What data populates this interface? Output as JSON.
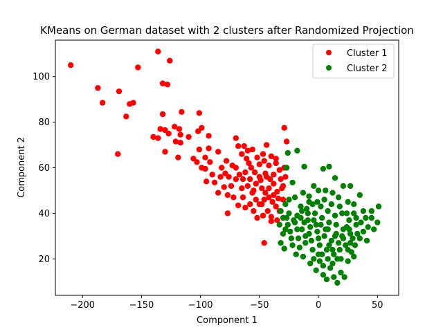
{
  "chart_data": {
    "type": "scatter",
    "title": "KMeans on German dataset with 2 clusters after Randomized Projection",
    "xlabel": "Component 1",
    "ylabel": "Component 2",
    "xlim": [
      -223,
      68
    ],
    "ylim": [
      4,
      116
    ],
    "xticks": [
      -200,
      -150,
      -100,
      -50,
      0,
      50
    ],
    "yticks": [
      20,
      40,
      60,
      80,
      100
    ],
    "grid": false,
    "legend_position": "top-right",
    "series": [
      {
        "name": "Cluster 1",
        "color": "#ff0000",
        "points": [
          [
            -210,
            105
          ],
          [
            -187,
            95
          ],
          [
            -183,
            88.5
          ],
          [
            -169,
            93.5
          ],
          [
            -163,
            82.5
          ],
          [
            -160,
            88
          ],
          [
            -157,
            88.5
          ],
          [
            -153,
            104
          ],
          [
            -170,
            66
          ],
          [
            -136,
            111
          ],
          [
            -132,
            97
          ],
          [
            -128,
            96.5
          ],
          [
            -126,
            107
          ],
          [
            -132,
            83.5
          ],
          [
            -134,
            77
          ],
          [
            -130,
            76.5
          ],
          [
            -127,
            75
          ],
          [
            -122,
            78
          ],
          [
            -118,
            77
          ],
          [
            -116,
            84.5
          ],
          [
            -110,
            73.5
          ],
          [
            -102,
            76
          ],
          [
            -99,
            77.5
          ],
          [
            -101,
            84
          ],
          [
            -93,
            74
          ],
          [
            -140,
            73.5
          ],
          [
            -136,
            73
          ],
          [
            -130,
            67
          ],
          [
            -121,
            71.5
          ],
          [
            -117,
            74.5
          ],
          [
            -117,
            71
          ],
          [
            -119,
            64.5
          ],
          [
            -106,
            64
          ],
          [
            -101,
            68
          ],
          [
            -96,
            64.5
          ],
          [
            -93,
            68.5
          ],
          [
            -85,
            67
          ],
          [
            -103,
            62.5
          ],
          [
            -99,
            60
          ],
          [
            -96,
            59.5
          ],
          [
            -92,
            62.5
          ],
          [
            -88,
            53.5
          ],
          [
            -83,
            56
          ],
          [
            -79,
            57.5
          ],
          [
            -76,
            56
          ],
          [
            -74,
            52
          ],
          [
            -73,
            61
          ],
          [
            -70,
            73
          ],
          [
            -68,
            69.5
          ],
          [
            -65,
            66
          ],
          [
            -63,
            69.5
          ],
          [
            -60,
            67.5
          ],
          [
            -56,
            68
          ],
          [
            -50,
            61.5
          ],
          [
            -46,
            63
          ],
          [
            -42,
            61
          ],
          [
            -40,
            65
          ],
          [
            -36,
            64
          ],
          [
            -33,
            59
          ],
          [
            -29,
            60
          ],
          [
            -29,
            77.5
          ],
          [
            -27,
            71.5
          ],
          [
            -70,
            60
          ],
          [
            -67,
            57
          ],
          [
            -64,
            55
          ],
          [
            -60,
            52
          ],
          [
            -56,
            49
          ],
          [
            -53,
            46
          ],
          [
            -50,
            44
          ],
          [
            -48,
            51
          ],
          [
            -45,
            49
          ],
          [
            -42,
            47
          ],
          [
            -38,
            53
          ],
          [
            -36,
            43
          ],
          [
            -33,
            41
          ],
          [
            -30,
            46
          ],
          [
            -85,
            49
          ],
          [
            -80,
            51.5
          ],
          [
            -77,
            48
          ],
          [
            -72,
            47
          ],
          [
            -77,
            40
          ],
          [
            -68,
            43.5
          ],
          [
            -62,
            42.5
          ],
          [
            -58,
            44
          ],
          [
            -55,
            41
          ],
          [
            -52,
            38
          ],
          [
            -47,
            39
          ],
          [
            -43,
            41
          ],
          [
            -40,
            38.5
          ],
          [
            -46,
            27
          ],
          [
            -35,
            49.5
          ],
          [
            -31,
            51
          ],
          [
            -38,
            57
          ],
          [
            -44,
            56
          ],
          [
            -49,
            54.5
          ],
          [
            -54,
            58
          ],
          [
            -59,
            62
          ],
          [
            -64,
            47
          ],
          [
            -40,
            36.5
          ],
          [
            -35,
            37
          ],
          [
            -48,
            44
          ],
          [
            -58,
            55
          ],
          [
            -65,
            51
          ],
          [
            -70,
            55
          ],
          [
            -52,
            64.5
          ],
          [
            -44,
            70
          ],
          [
            -38,
            48
          ],
          [
            -32,
            55
          ],
          [
            -30,
            52
          ],
          [
            -28,
            56
          ],
          [
            -50,
            56
          ],
          [
            -57,
            60
          ],
          [
            -61,
            64
          ],
          [
            -42,
            51
          ],
          [
            -45,
            57.5
          ],
          [
            -53,
            53
          ],
          [
            -39,
            45
          ],
          [
            -34,
            46.5
          ],
          [
            -95,
            54
          ],
          [
            -90,
            57
          ],
          [
            -82,
            60
          ],
          [
            -78,
            63
          ],
          [
            -62,
            58
          ],
          [
            -47,
            66
          ],
          [
            -36,
            62
          ],
          [
            -55,
            50
          ],
          [
            -46,
            46
          ],
          [
            -41,
            55
          ]
        ]
      },
      {
        "name": "Cluster 2",
        "color": "#008000",
        "points": [
          [
            -27,
            60
          ],
          [
            -26,
            66.5
          ],
          [
            -18,
            67.5
          ],
          [
            -12,
            60.5
          ],
          [
            4,
            59.5
          ],
          [
            9,
            60.5
          ],
          [
            14,
            55.5
          ],
          [
            21,
            52
          ],
          [
            27,
            52
          ],
          [
            35,
            48
          ],
          [
            40,
            38
          ],
          [
            45,
            38
          ],
          [
            45,
            41
          ],
          [
            51,
            43
          ],
          [
            50,
            36
          ],
          [
            -22,
            53.5
          ],
          [
            -13,
            49
          ],
          [
            -8,
            47.5
          ],
          [
            -4,
            52
          ],
          [
            0,
            50
          ],
          [
            6,
            50
          ],
          [
            12,
            49
          ],
          [
            17,
            47
          ],
          [
            25,
            45
          ],
          [
            30,
            44
          ],
          [
            -32,
            41
          ],
          [
            -28,
            44
          ],
          [
            -25,
            46
          ],
          [
            -20,
            47
          ],
          [
            -15,
            43
          ],
          [
            -10,
            42
          ],
          [
            -5,
            44
          ],
          [
            2,
            43
          ],
          [
            8,
            41
          ],
          [
            14,
            39
          ],
          [
            20,
            40
          ],
          [
            26,
            37
          ],
          [
            32,
            35
          ],
          [
            -33,
            35
          ],
          [
            -30,
            31
          ],
          [
            -27,
            38
          ],
          [
            -24,
            32
          ],
          [
            -20,
            36
          ],
          [
            -17,
            29
          ],
          [
            -14,
            33
          ],
          [
            -11,
            27
          ],
          [
            -8,
            31
          ],
          [
            -5,
            24
          ],
          [
            -2,
            35
          ],
          [
            0,
            29
          ],
          [
            3,
            22
          ],
          [
            6,
            33
          ],
          [
            9,
            26
          ],
          [
            12,
            18
          ],
          [
            15,
            31
          ],
          [
            18,
            24
          ],
          [
            21,
            29
          ],
          [
            24,
            34
          ],
          [
            27,
            27
          ],
          [
            30,
            21
          ],
          [
            33,
            31
          ],
          [
            -32,
            27
          ],
          [
            -29,
            24.5
          ],
          [
            -22,
            26
          ],
          [
            -19,
            22
          ],
          [
            -13,
            21
          ],
          [
            -7,
            18
          ],
          [
            -2,
            15
          ],
          [
            1,
            19
          ],
          [
            4,
            13
          ],
          [
            7,
            11
          ],
          [
            10,
            16
          ],
          [
            13,
            12
          ],
          [
            16,
            9.5
          ],
          [
            19,
            14
          ],
          [
            22,
            12
          ],
          [
            25,
            19
          ],
          [
            28,
            23
          ],
          [
            31,
            26
          ],
          [
            35,
            29
          ],
          [
            38,
            32
          ],
          [
            41,
            28
          ],
          [
            -25,
            40
          ],
          [
            -18,
            39
          ],
          [
            -9,
            37
          ],
          [
            -3,
            40
          ],
          [
            3,
            38
          ],
          [
            9,
            36
          ],
          [
            15,
            35
          ],
          [
            21,
            33
          ],
          [
            27,
            31
          ],
          [
            -16,
            25
          ],
          [
            -11,
            30
          ],
          [
            -6,
            28
          ],
          [
            1,
            26
          ],
          [
            7,
            24
          ],
          [
            13,
            22
          ],
          [
            19,
            20
          ],
          [
            25,
            24
          ],
          [
            -28,
            33
          ],
          [
            -23,
            29
          ],
          [
            -18,
            33
          ],
          [
            -12,
            36
          ],
          [
            -7,
            34
          ],
          [
            -1,
            32
          ],
          [
            5,
            30
          ],
          [
            11,
            28
          ],
          [
            17,
            27
          ],
          [
            23,
            26
          ],
          [
            29,
            29
          ],
          [
            36,
            36
          ],
          [
            42,
            34
          ],
          [
            47,
            33
          ],
          [
            -30,
            38
          ],
          [
            -26,
            35
          ],
          [
            -21,
            37
          ],
          [
            -15,
            38
          ],
          [
            -9,
            40
          ],
          [
            -4,
            37
          ],
          [
            2,
            35
          ],
          [
            8,
            33
          ],
          [
            14,
            30
          ],
          [
            20,
            30
          ],
          [
            26,
            33
          ],
          [
            32,
            38
          ],
          [
            38,
            41
          ],
          [
            -14,
            41
          ],
          [
            -8,
            45
          ],
          [
            -1,
            45
          ],
          [
            5,
            46
          ],
          [
            11,
            44
          ],
          [
            18,
            43
          ],
          [
            24,
            40
          ],
          [
            30,
            40
          ],
          [
            4,
            17
          ],
          [
            8,
            20
          ],
          [
            0,
            22
          ],
          [
            -4,
            20
          ],
          [
            12,
            24
          ],
          [
            16,
            20
          ]
        ]
      }
    ]
  }
}
